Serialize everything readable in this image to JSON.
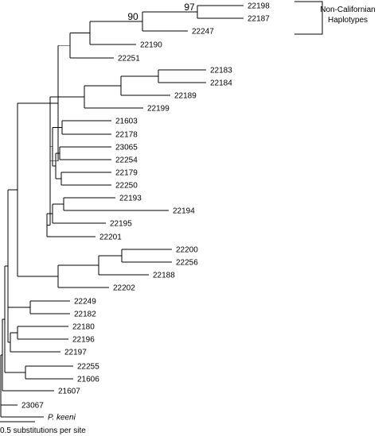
{
  "tree": {
    "leaves": [
      {
        "id": "n22198",
        "label": "22198",
        "italic": false
      },
      {
        "id": "n22187",
        "label": "22187",
        "italic": false
      },
      {
        "id": "n22247",
        "label": "22247",
        "italic": false
      },
      {
        "id": "n22190",
        "label": "22190",
        "italic": false
      },
      {
        "id": "n22251",
        "label": "22251",
        "italic": false
      },
      {
        "id": "n22183",
        "label": "22183",
        "italic": false
      },
      {
        "id": "n22184",
        "label": "22184",
        "italic": false
      },
      {
        "id": "n22189",
        "label": "22189",
        "italic": false
      },
      {
        "id": "n22199",
        "label": "22199",
        "italic": false
      },
      {
        "id": "n21603",
        "label": "21603",
        "italic": false
      },
      {
        "id": "n22178",
        "label": "22178",
        "italic": false
      },
      {
        "id": "n23065",
        "label": "23065",
        "italic": false
      },
      {
        "id": "n22254",
        "label": "22254",
        "italic": false
      },
      {
        "id": "n22179",
        "label": "22179",
        "italic": false
      },
      {
        "id": "n22250",
        "label": "22250",
        "italic": false
      },
      {
        "id": "n22193",
        "label": "22193",
        "italic": false
      },
      {
        "id": "n22194",
        "label": "22194",
        "italic": false
      },
      {
        "id": "n22195",
        "label": "22195",
        "italic": false
      },
      {
        "id": "n22201",
        "label": "22201",
        "italic": false
      },
      {
        "id": "n22200",
        "label": "22200",
        "italic": false
      },
      {
        "id": "n22256",
        "label": "22256",
        "italic": false
      },
      {
        "id": "n22188",
        "label": "22188",
        "italic": false
      },
      {
        "id": "n22202",
        "label": "22202",
        "italic": false
      },
      {
        "id": "n22249",
        "label": "22249",
        "italic": false
      },
      {
        "id": "n22182",
        "label": "22182",
        "italic": false
      },
      {
        "id": "n22180",
        "label": "22180",
        "italic": false
      },
      {
        "id": "n22196",
        "label": "22196",
        "italic": false
      },
      {
        "id": "n22197",
        "label": "22197",
        "italic": false
      },
      {
        "id": "n22255",
        "label": "22255",
        "italic": false
      },
      {
        "id": "n21606",
        "label": "21606",
        "italic": false
      },
      {
        "id": "n21607",
        "label": "21607",
        "italic": false
      },
      {
        "id": "n23067",
        "label": "23067",
        "italic": false
      },
      {
        "id": "nkeeni",
        "label": "P. keeni",
        "italic": true
      }
    ],
    "bootstrap": [
      {
        "node": "c97",
        "value": "97"
      },
      {
        "node": "c90",
        "value": "90"
      }
    ],
    "bracket_note": {
      "line1": "Non-Californian",
      "line2": "Haplotypes"
    },
    "scale_bar": {
      "label": "0.5 substitutions per site",
      "units": 0.5
    }
  }
}
